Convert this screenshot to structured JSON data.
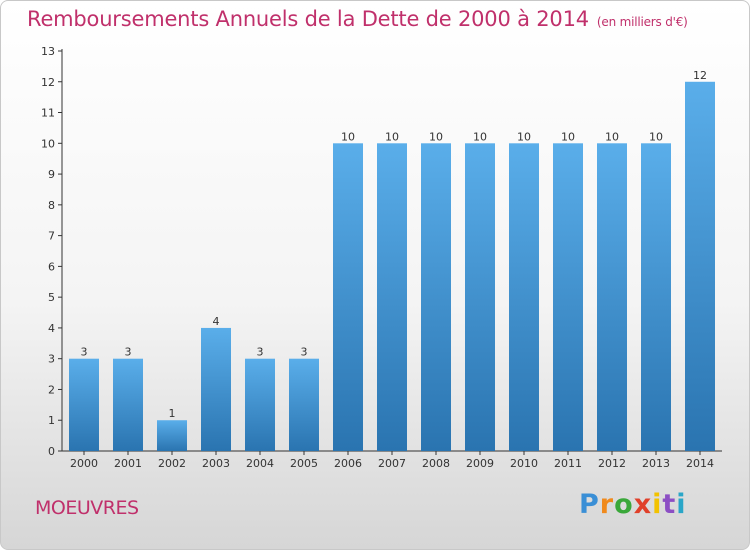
{
  "header": {
    "title": "Remboursements Annuels de la Dette de 2000 à 2014",
    "subtitle": "(en milliers d'€)"
  },
  "footer": {
    "city": "MOEUVRES",
    "logo": "Proxiti"
  },
  "colors": {
    "bar_top": "#5aaeea",
    "bar_bottom": "#2a74b0",
    "title": "#c0306b",
    "axis": "#333333"
  },
  "chart_data": {
    "type": "bar",
    "title": "Remboursements Annuels de la Dette de 2000 à 2014",
    "subtitle": "(en milliers d'€)",
    "xlabel": "",
    "ylabel": "",
    "categories": [
      "2000",
      "2001",
      "2002",
      "2003",
      "2004",
      "2005",
      "2006",
      "2007",
      "2008",
      "2009",
      "2010",
      "2011",
      "2012",
      "2013",
      "2014"
    ],
    "values": [
      3,
      3,
      1,
      4,
      3,
      3,
      10,
      10,
      10,
      10,
      10,
      10,
      10,
      10,
      12
    ],
    "data_labels": [
      "3",
      "3",
      "1",
      "4",
      "3",
      "3",
      "10",
      "10",
      "10",
      "10",
      "10",
      "10",
      "10",
      "10",
      "12"
    ],
    "ylim": [
      0,
      13
    ],
    "yticks": [
      "0",
      "1",
      "2",
      "3",
      "4",
      "5",
      "6",
      "7",
      "8",
      "9",
      "10",
      "11",
      "12",
      "13"
    ],
    "grid": false,
    "legend": "none"
  }
}
